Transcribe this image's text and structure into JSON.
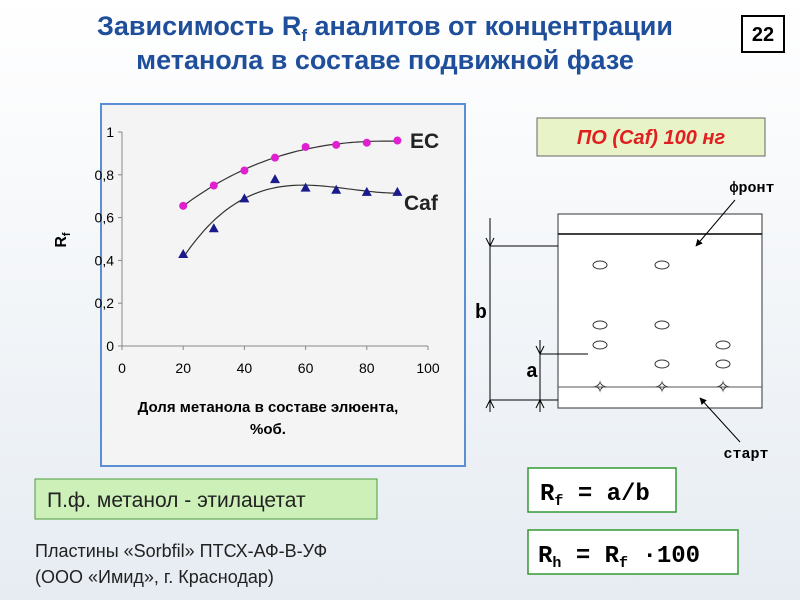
{
  "title_parts": [
    "Зависимость R",
    "f",
    " аналитов от концентрации",
    "метанола в составе подвижной фазе"
  ],
  "page_number": "22",
  "chart_data": {
    "type": "scatter",
    "x": [
      20,
      30,
      40,
      50,
      60,
      70,
      80,
      90
    ],
    "series": [
      {
        "name": "EC",
        "color": "#e020d0",
        "marker": "circle",
        "values": [
          0.655,
          0.75,
          0.82,
          0.88,
          0.93,
          0.94,
          0.95,
          0.96
        ]
      },
      {
        "name": "Caf",
        "color": "#1a1a8c",
        "marker": "triangle",
        "values": [
          0.43,
          0.55,
          0.69,
          0.78,
          0.74,
          0.73,
          0.72,
          0.72
        ]
      }
    ],
    "xlim": [
      0,
      100
    ],
    "xticks": [
      0,
      20,
      40,
      60,
      80,
      100
    ],
    "ylim": [
      0,
      1
    ],
    "yticks": [
      0,
      {
        "value": 0.2,
        "label": "0,2"
      },
      {
        "value": 0.4,
        "label": "0,4"
      },
      {
        "value": 0.6,
        "label": "0,6"
      },
      {
        "value": 0.8,
        "label": "0,8"
      },
      1
    ],
    "ylabel_main": "R",
    "ylabel_sub": "f",
    "xlabel_lines": [
      "Доля метанола в составе элюента,",
      "%об."
    ],
    "trendline": true,
    "grid": false
  },
  "sample_box": "ПО (Caf)  100 нг",
  "diagram": {
    "front": "фронт",
    "start": "старт",
    "b": "b",
    "a": "a"
  },
  "formula1": [
    "R",
    "f",
    " = a/b"
  ],
  "formula2": [
    "R",
    "h",
    " = R",
    "f",
    " ·100"
  ],
  "mobile_phase": "П.ф. метанол - этилацетат",
  "plates": [
    "Пластины «Sorbfil» ПТСХ-АФ-В-УФ",
    "(ООО «Имид», г. Краснодар)"
  ]
}
